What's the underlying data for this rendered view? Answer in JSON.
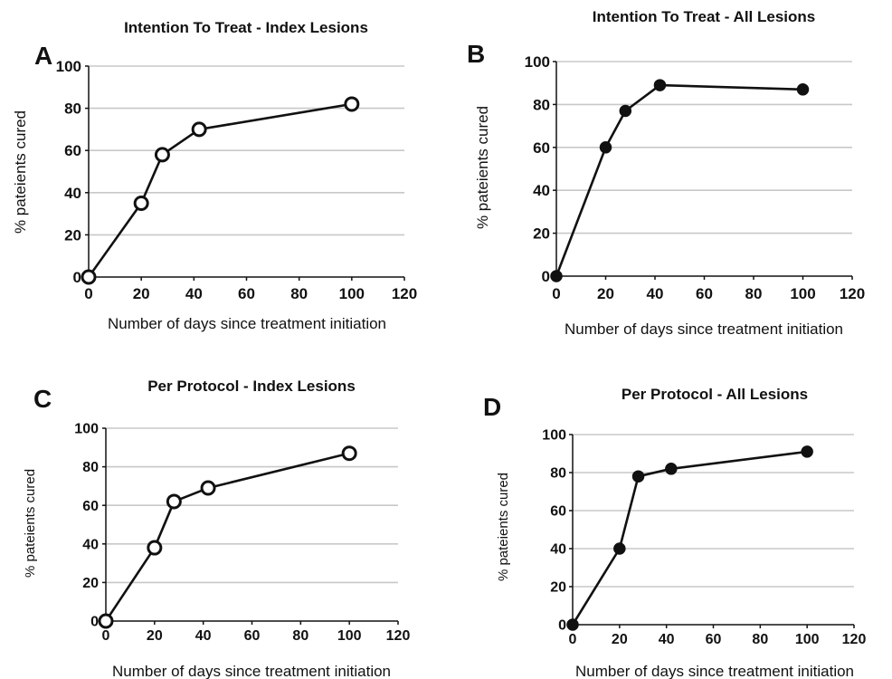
{
  "chart_data": [
    {
      "panel": "A",
      "type": "line",
      "title": "Intention To Treat - Index Lesions",
      "xlabel": "Number of days since treatment  initiation",
      "ylabel": "% pateients cured",
      "xlim": [
        0,
        120
      ],
      "ylim": [
        0,
        100
      ],
      "xticks": [
        "0",
        "20",
        "40",
        "60",
        "80",
        "100",
        "120"
      ],
      "yticks": [
        "0",
        "20",
        "40",
        "60",
        "80",
        "100"
      ],
      "grid": "horizontal",
      "marker": "open-circle",
      "series": [
        {
          "x": [
            0,
            20,
            28,
            42,
            100
          ],
          "y": [
            0,
            35,
            58,
            70,
            82
          ]
        }
      ]
    },
    {
      "panel": "B",
      "type": "line",
      "title": "Intention To Treat  - All Lesions",
      "xlabel": "Number of days since treatment  initiation",
      "ylabel": "% pateients cured",
      "xlim": [
        0,
        120
      ],
      "ylim": [
        0,
        100
      ],
      "xticks": [
        "0",
        "20",
        "40",
        "60",
        "80",
        "100",
        "120"
      ],
      "yticks": [
        "0",
        "20",
        "40",
        "60",
        "80",
        "100"
      ],
      "grid": "horizontal",
      "marker": "filled-circle",
      "series": [
        {
          "x": [
            0,
            20,
            28,
            42,
            100
          ],
          "y": [
            0,
            60,
            77,
            89,
            87
          ]
        }
      ]
    },
    {
      "panel": "C",
      "type": "line",
      "title": "Per Protocol - Index Lesions",
      "xlabel": "Number of days since treatment  initiation",
      "ylabel": "% pateients cured",
      "xlim": [
        0,
        120
      ],
      "ylim": [
        0,
        100
      ],
      "xticks": [
        "0",
        "20",
        "40",
        "60",
        "80",
        "100",
        "120"
      ],
      "yticks": [
        "0",
        "20",
        "40",
        "60",
        "80",
        "100"
      ],
      "grid": "horizontal",
      "marker": "open-circle",
      "series": [
        {
          "x": [
            0,
            20,
            28,
            42,
            100
          ],
          "y": [
            0,
            38,
            62,
            69,
            87
          ]
        }
      ]
    },
    {
      "panel": "D",
      "type": "line",
      "title": "Per Protocol - All Lesions",
      "xlabel": "Number of days since treatment  initiation",
      "ylabel": "% pateients cured",
      "xlim": [
        0,
        120
      ],
      "ylim": [
        0,
        100
      ],
      "xticks": [
        "0",
        "20",
        "40",
        "60",
        "80",
        "100",
        "120"
      ],
      "yticks": [
        "0",
        "20",
        "40",
        "60",
        "80",
        "100"
      ],
      "grid": "horizontal",
      "marker": "filled-circle",
      "series": [
        {
          "x": [
            0,
            20,
            28,
            42,
            100
          ],
          "y": [
            0,
            40,
            78,
            82,
            91
          ]
        }
      ]
    }
  ]
}
